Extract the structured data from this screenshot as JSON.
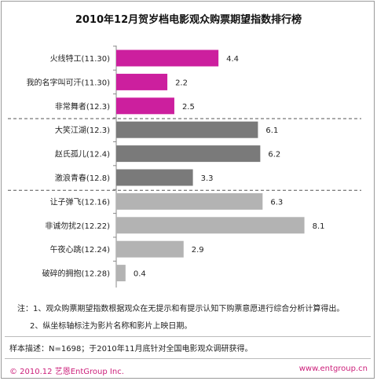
{
  "page": {
    "notes": [
      "注：1、观众购票期望指数根据观众在无提示和有提示认知下购票意愿进行综合分析计算得出。",
      "2、纵坐标轴标注为影片名称和影片上映日期。"
    ],
    "sample": "样本描述：N=1698；于2010年11月底针对全国电影观众调研获得。",
    "footer_left": "© 2010.12  艺恩EntGroup Inc.",
    "footer_right": "www.entgroup.cn"
  },
  "chart_data": {
    "type": "bar",
    "orientation": "horizontal",
    "title": "2010年12月贺岁档电影观众购票期望指数排行榜",
    "categories": [
      "火线特工(11.30)",
      "我的名字叫可汗(11.30)",
      "非常舞者(12.3)",
      "大笑江湖(12.3)",
      "赵氏孤儿(12.4)",
      "激浪青春(12.8)",
      "让子弹飞(12.16)",
      "非诚勿扰2(12.22)",
      "午夜心跳(12.24)",
      "破碎的拥抱(12.28)"
    ],
    "values": [
      4.4,
      2.2,
      2.5,
      6.1,
      6.2,
      3.3,
      6.3,
      8.1,
      2.9,
      0.4
    ],
    "value_labels": [
      "4.4",
      "2.2",
      "2.5",
      "6.1",
      "6.2",
      "3.3",
      "6.3",
      "8.1",
      "2.9",
      "0.4"
    ],
    "colors": [
      "#cc1f9e",
      "#cc1f9e",
      "#cc1f9e",
      "#7a7a7a",
      "#7a7a7a",
      "#7a7a7a",
      "#b3b3b3",
      "#b3b3b3",
      "#b3b3b3",
      "#b3b3b3"
    ],
    "group_separators_after": [
      2,
      5
    ],
    "xlim": [
      0,
      10
    ],
    "grid": false,
    "legend": "none"
  }
}
